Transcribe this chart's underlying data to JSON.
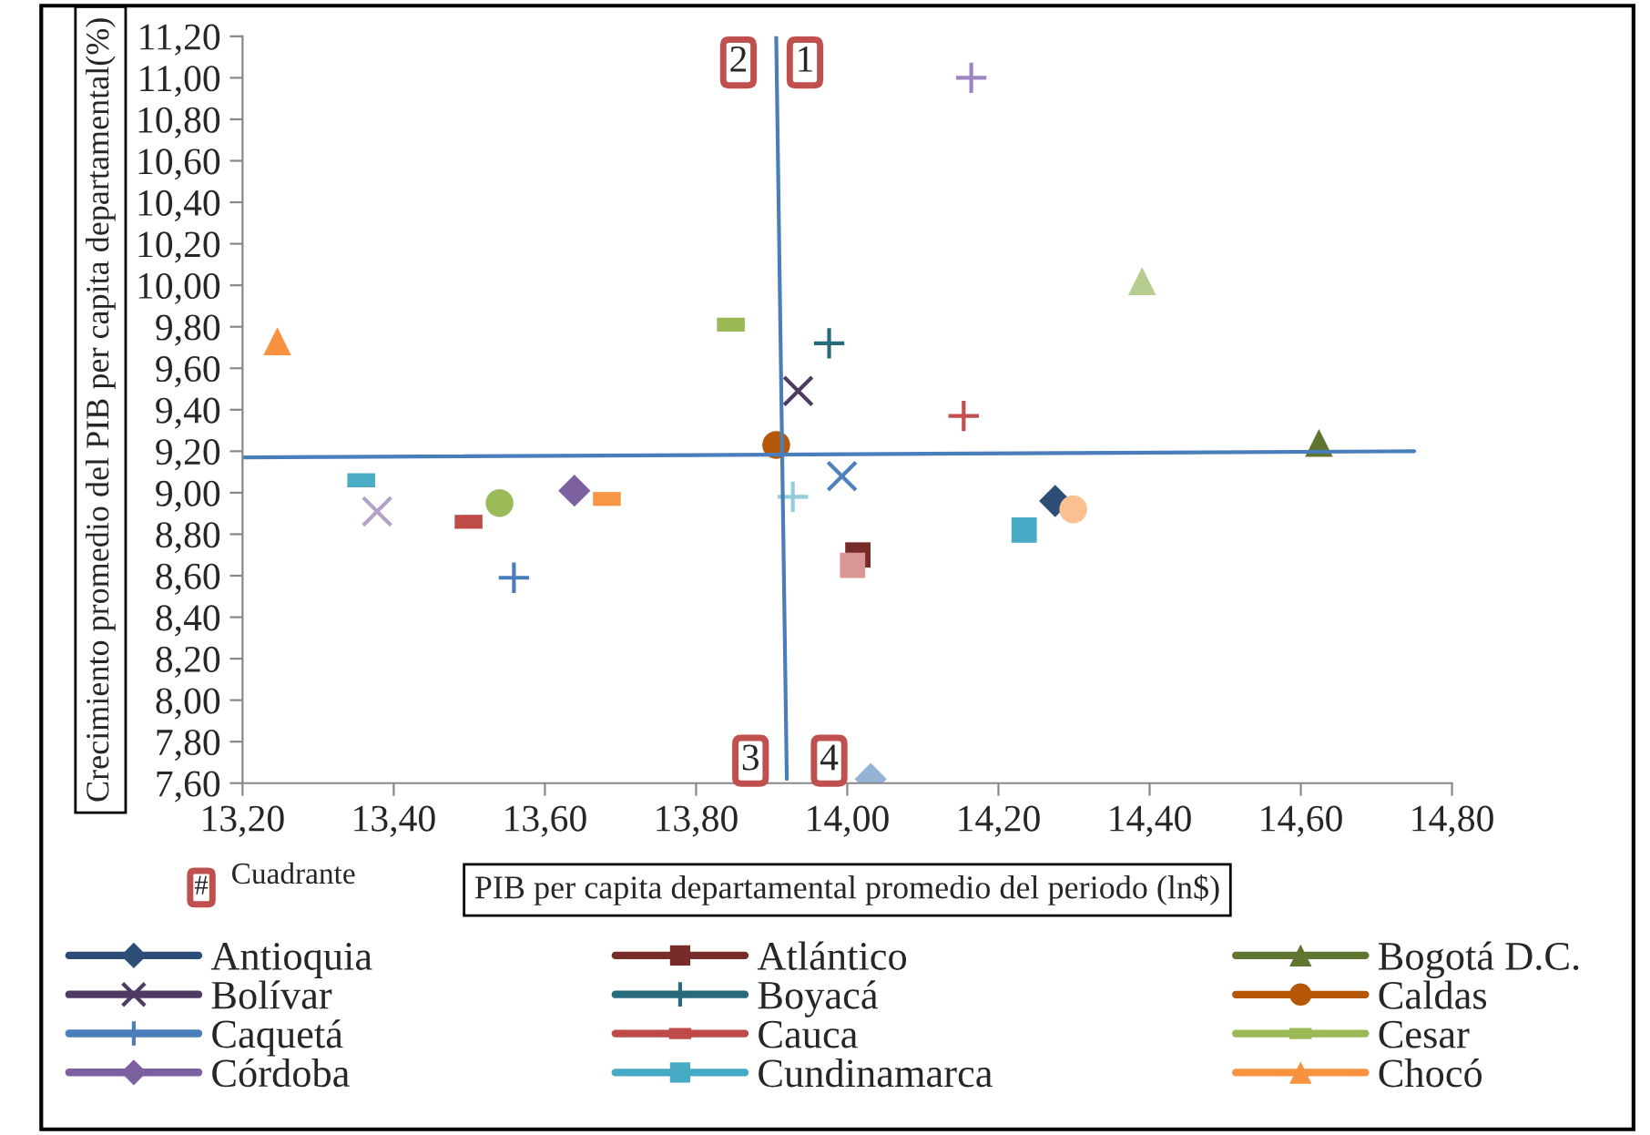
{
  "chart_data": {
    "type": "scatter",
    "xlabel": "PIB per capita departamental promedio del periodo (ln$)",
    "ylabel": "Crecimiento promedio del PIB per capita departamental(%)",
    "xlim": [
      13.2,
      14.8
    ],
    "ylim": [
      7.6,
      11.2
    ],
    "xticks": [
      {
        "value": 13.2,
        "label": "13,20"
      },
      {
        "value": 13.4,
        "label": "13,40"
      },
      {
        "value": 13.6,
        "label": "13,60"
      },
      {
        "value": 13.8,
        "label": "13,80"
      },
      {
        "value": 14.0,
        "label": "14,00"
      },
      {
        "value": 14.2,
        "label": "14,20"
      },
      {
        "value": 14.4,
        "label": "14,40"
      },
      {
        "value": 14.6,
        "label": "14,60"
      },
      {
        "value": 14.8,
        "label": "14,80"
      }
    ],
    "yticks": [
      {
        "value": 7.6,
        "label": "7,60"
      },
      {
        "value": 7.8,
        "label": "7,80"
      },
      {
        "value": 8.0,
        "label": "8,00"
      },
      {
        "value": 8.2,
        "label": "8,20"
      },
      {
        "value": 8.4,
        "label": "8,40"
      },
      {
        "value": 8.6,
        "label": "8,60"
      },
      {
        "value": 8.8,
        "label": "8,80"
      },
      {
        "value": 9.0,
        "label": "9,00"
      },
      {
        "value": 9.2,
        "label": "9,20"
      },
      {
        "value": 9.4,
        "label": "9,40"
      },
      {
        "value": 9.6,
        "label": "9,60"
      },
      {
        "value": 9.8,
        "label": "9,80"
      },
      {
        "value": 10.0,
        "label": "10,00"
      },
      {
        "value": 10.2,
        "label": "10,20"
      },
      {
        "value": 10.4,
        "label": "10,40"
      },
      {
        "value": 10.6,
        "label": "10,60"
      },
      {
        "value": 10.8,
        "label": "10,80"
      },
      {
        "value": 11.0,
        "label": "11,00"
      },
      {
        "value": 11.2,
        "label": "11,20"
      }
    ],
    "grid": false,
    "legend": "bottom",
    "annotations": [
      "2",
      "1",
      "3",
      "4",
      "#",
      "Cuadrante"
    ],
    "series": [
      {
        "name": "Antioquia",
        "color": "#2c4d75",
        "marker": "diamond",
        "x": [
          14.275
        ],
        "values": [
          8.96
        ]
      },
      {
        "name": "Atlántico",
        "color": "#772c2a",
        "marker": "square",
        "x": [
          14.014
        ],
        "values": [
          8.7
        ]
      },
      {
        "name": "Bogotá D.C.",
        "color": "#5f7530",
        "marker": "triangle",
        "x": [
          14.624
        ],
        "values": [
          9.24
        ]
      },
      {
        "name": "Bolívar",
        "color": "#4d3b62",
        "marker": "x",
        "x": [
          13.935
        ],
        "values": [
          9.49
        ]
      },
      {
        "name": "Boyacá",
        "color": "#276a7c",
        "marker": "cross",
        "x": [
          13.976
        ],
        "values": [
          9.72
        ]
      },
      {
        "name": "Caldas",
        "color": "#b65708",
        "marker": "circle",
        "x": [
          13.906
        ],
        "values": [
          9.23
        ]
      },
      {
        "name": "Caquetá",
        "color": "#4a7ebb",
        "marker": "cross",
        "x": [
          13.559
        ],
        "values": [
          8.59
        ]
      },
      {
        "name": "Cauca",
        "color": "#be4b48",
        "x": [
          13.499
        ],
        "values": [
          8.86
        ]
      },
      {
        "name": "Cesar",
        "color": "#98b954",
        "x": [
          13.846
        ],
        "values": [
          9.81
        ]
      },
      {
        "name": "Córdoba",
        "color": "#7d60a0",
        "marker": "diamond",
        "x": [
          13.639
        ],
        "values": [
          9.01
        ]
      },
      {
        "name": "Cundinamarca",
        "color": "#46aac5",
        "marker": "square",
        "x": [
          14.234
        ],
        "values": [
          8.82
        ]
      },
      {
        "name": "Chocó",
        "color": "#f69240",
        "marker": "triangle",
        "x": [
          13.246
        ],
        "values": [
          9.73
        ]
      },
      {
        "color": "#9c85c0",
        "marker": "cross",
        "x": [
          14.164
        ],
        "values": [
          11.0
        ]
      },
      {
        "color": "#b7cc8f",
        "marker": "triangle",
        "x": [
          14.39
        ],
        "values": [
          10.02
        ]
      },
      {
        "color": "#c0504d",
        "marker": "cross",
        "x": [
          14.154
        ],
        "values": [
          9.37
        ]
      },
      {
        "color": "#4f81bd",
        "marker": "x",
        "x": [
          13.993
        ],
        "values": [
          9.08
        ]
      },
      {
        "color": "#93cddd",
        "marker": "cross",
        "x": [
          13.928
        ],
        "values": [
          8.98
        ]
      },
      {
        "color": "#d99694",
        "marker": "square",
        "x": [
          14.007
        ],
        "values": [
          8.65
        ]
      },
      {
        "color": "#fac090",
        "marker": "circle",
        "x": [
          14.299
        ],
        "values": [
          8.92
        ]
      },
      {
        "color": "#b3a2c7",
        "marker": "x",
        "x": [
          13.378
        ],
        "values": [
          8.91
        ]
      },
      {
        "color": "#9bbb59",
        "marker": "circle",
        "x": [
          13.54
        ],
        "values": [
          8.95
        ]
      },
      {
        "color": "#f79646",
        "x": [
          13.682
        ],
        "values": [
          8.97
        ]
      },
      {
        "color": "#4bacc6",
        "x": [
          13.357
        ],
        "values": [
          9.06
        ]
      },
      {
        "color": "#95b3d7",
        "marker": "diamond",
        "x": [
          14.031
        ],
        "values": [
          7.62
        ]
      },
      {
        "type": "line",
        "color": "#4a7ebb",
        "marker": "none",
        "x": [
          13.906,
          13.92
        ],
        "values": [
          11.2,
          7.62
        ]
      },
      {
        "type": "line",
        "color": "#4a7ebb",
        "marker": "none",
        "x": [
          13.2,
          14.75
        ],
        "values": [
          9.17,
          9.2
        ]
      }
    ]
  }
}
